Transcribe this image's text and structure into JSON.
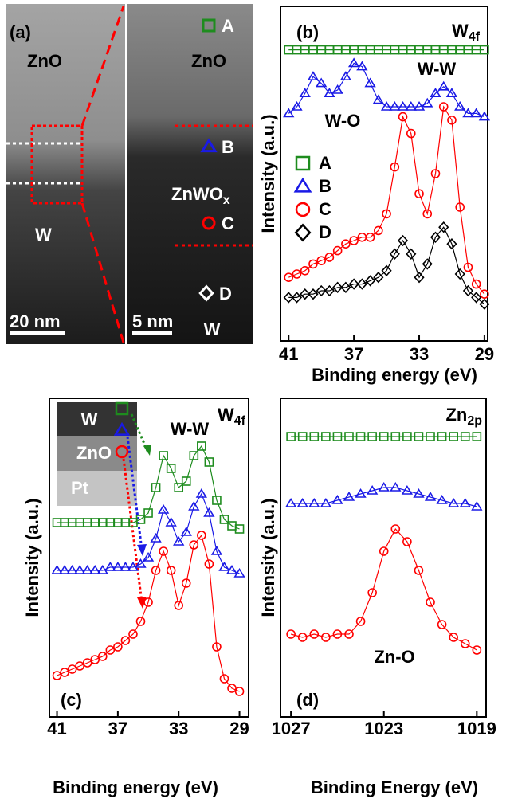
{
  "image_panel": {
    "label": "(a)",
    "left_layer_top": "ZnO",
    "left_layer_bottom": "W",
    "left_scale_bar": "20 nm",
    "right_scale_bar": "5 nm",
    "right_layer_top": "ZnO",
    "right_layer_middle": {
      "text": "ZnWO",
      "sub": "x"
    },
    "right_layer_bottom": "W"
  },
  "chart_data": [
    {
      "type": "line",
      "panel_label": "(b)",
      "annotations": [
        {
          "text": "W",
          "sub": "4f"
        },
        {
          "text": "W-W"
        },
        {
          "text": "W-O"
        }
      ],
      "xlabel": "Binding energy (eV)",
      "ylabel": "Intensity (a.u.)",
      "xlim": [
        41.5,
        28.8
      ],
      "xticks": [
        41,
        37,
        33,
        29
      ],
      "ylim": [
        0,
        100
      ],
      "legend": true,
      "x": [
        41,
        40.5,
        40,
        39.5,
        39,
        38.5,
        38,
        37.5,
        37,
        36.5,
        36,
        35.5,
        35,
        34.5,
        34,
        33.5,
        33,
        32.5,
        32,
        31.5,
        31,
        30.5,
        30,
        29.5,
        29
      ],
      "series": [
        {
          "name": "A",
          "color": "#1e8c1e",
          "marker": "square",
          "values": [
            87,
            87,
            87,
            87,
            87,
            87,
            87,
            87,
            87,
            87,
            87,
            87,
            87,
            87,
            87,
            87,
            87,
            87,
            87,
            87,
            87,
            87,
            87,
            87,
            87
          ]
        },
        {
          "name": "B",
          "color": "#1a1ae6",
          "marker": "triangle",
          "values": [
            68,
            70,
            74,
            79,
            77,
            74,
            75,
            79,
            83,
            82,
            77,
            72,
            70,
            70,
            70,
            70,
            70,
            71,
            74,
            76,
            74,
            70,
            68,
            68,
            67
          ]
        },
        {
          "name": "C",
          "color": "#ff0000",
          "marker": "circle",
          "values": [
            19,
            20,
            21,
            23,
            24,
            25,
            27,
            29,
            30,
            31,
            31,
            33,
            38,
            52,
            67,
            62,
            44,
            38,
            50,
            70,
            66,
            40,
            22,
            17,
            14
          ]
        },
        {
          "name": "D",
          "color": "#000000",
          "marker": "diamond",
          "values": [
            13,
            13,
            14,
            14,
            15,
            15,
            16,
            16,
            17,
            17,
            18,
            19,
            21,
            26,
            30,
            26,
            19,
            23,
            31,
            34,
            29,
            20,
            15,
            13,
            11
          ]
        }
      ]
    },
    {
      "type": "line",
      "panel_label": "(c)",
      "annotations": [
        {
          "text": "W",
          "sub": "4f"
        },
        {
          "text": "W-W"
        }
      ],
      "inset_layers": [
        "W",
        "ZnO",
        "Pt"
      ],
      "xlabel": "Binding energy (eV)",
      "ylabel": "Intensity (a.u.)",
      "xlim": [
        41.5,
        28.4
      ],
      "xticks": [
        41,
        37,
        33,
        29
      ],
      "ylim": [
        0,
        100
      ],
      "x": [
        41,
        40.5,
        40,
        39.5,
        39,
        38.5,
        38,
        37.5,
        37,
        36.5,
        36,
        35.5,
        35,
        34.5,
        34,
        33.5,
        33,
        32.5,
        32,
        31.5,
        31,
        30.5,
        30,
        29.5,
        29
      ],
      "series": [
        {
          "color": "#1e8c1e",
          "marker": "square",
          "values": [
            61,
            61,
            61,
            61,
            61,
            61,
            61,
            61,
            61,
            61,
            61,
            62,
            64,
            72,
            82,
            78,
            72,
            74,
            82,
            85,
            80,
            68,
            62,
            60,
            59
          ]
        },
        {
          "color": "#1a1ae6",
          "marker": "triangle",
          "values": [
            46,
            46,
            46,
            46,
            46,
            46,
            46,
            47,
            47,
            47,
            47,
            48,
            50,
            56,
            65,
            61,
            55,
            58,
            66,
            70,
            64,
            52,
            47,
            46,
            45
          ]
        },
        {
          "color": "#ff0000",
          "marker": "circle",
          "values": [
            13,
            14,
            15,
            16,
            17,
            18,
            19,
            21,
            22,
            24,
            26,
            30,
            36,
            46,
            52,
            46,
            35,
            42,
            54,
            57,
            48,
            22,
            12,
            9,
            8
          ]
        }
      ]
    },
    {
      "type": "line",
      "panel_label": "(d)",
      "annotations": [
        {
          "text": "Zn",
          "sub": "2p"
        },
        {
          "text": "Zn-O"
        }
      ],
      "xlabel": "Binding Energy (eV)",
      "ylabel": "Intensity (a.u.)",
      "xlim": [
        1027.45,
        1018.6
      ],
      "xticks": [
        1027,
        1023,
        1019
      ],
      "ylim": [
        0,
        100
      ],
      "x": [
        1027,
        1026.5,
        1026,
        1025.5,
        1025,
        1024.5,
        1024,
        1023.5,
        1023,
        1022.5,
        1022,
        1021.5,
        1021,
        1020.5,
        1020,
        1019.5,
        1019
      ],
      "series": [
        {
          "color": "#1e8c1e",
          "marker": "square",
          "values": [
            88,
            88,
            88,
            88,
            88,
            88,
            88,
            88,
            88,
            88,
            88,
            88,
            88,
            88,
            88,
            88,
            88
          ]
        },
        {
          "color": "#1a1ae6",
          "marker": "triangle",
          "values": [
            67,
            67,
            67,
            67,
            68,
            69,
            70,
            71,
            72,
            72,
            71,
            70,
            69,
            68,
            67,
            67,
            66
          ]
        },
        {
          "color": "#ff0000",
          "marker": "circle",
          "values": [
            26,
            25,
            26,
            25,
            26,
            26,
            30,
            39,
            52,
            59,
            55,
            46,
            36,
            29,
            25,
            23,
            21
          ]
        }
      ]
    }
  ]
}
